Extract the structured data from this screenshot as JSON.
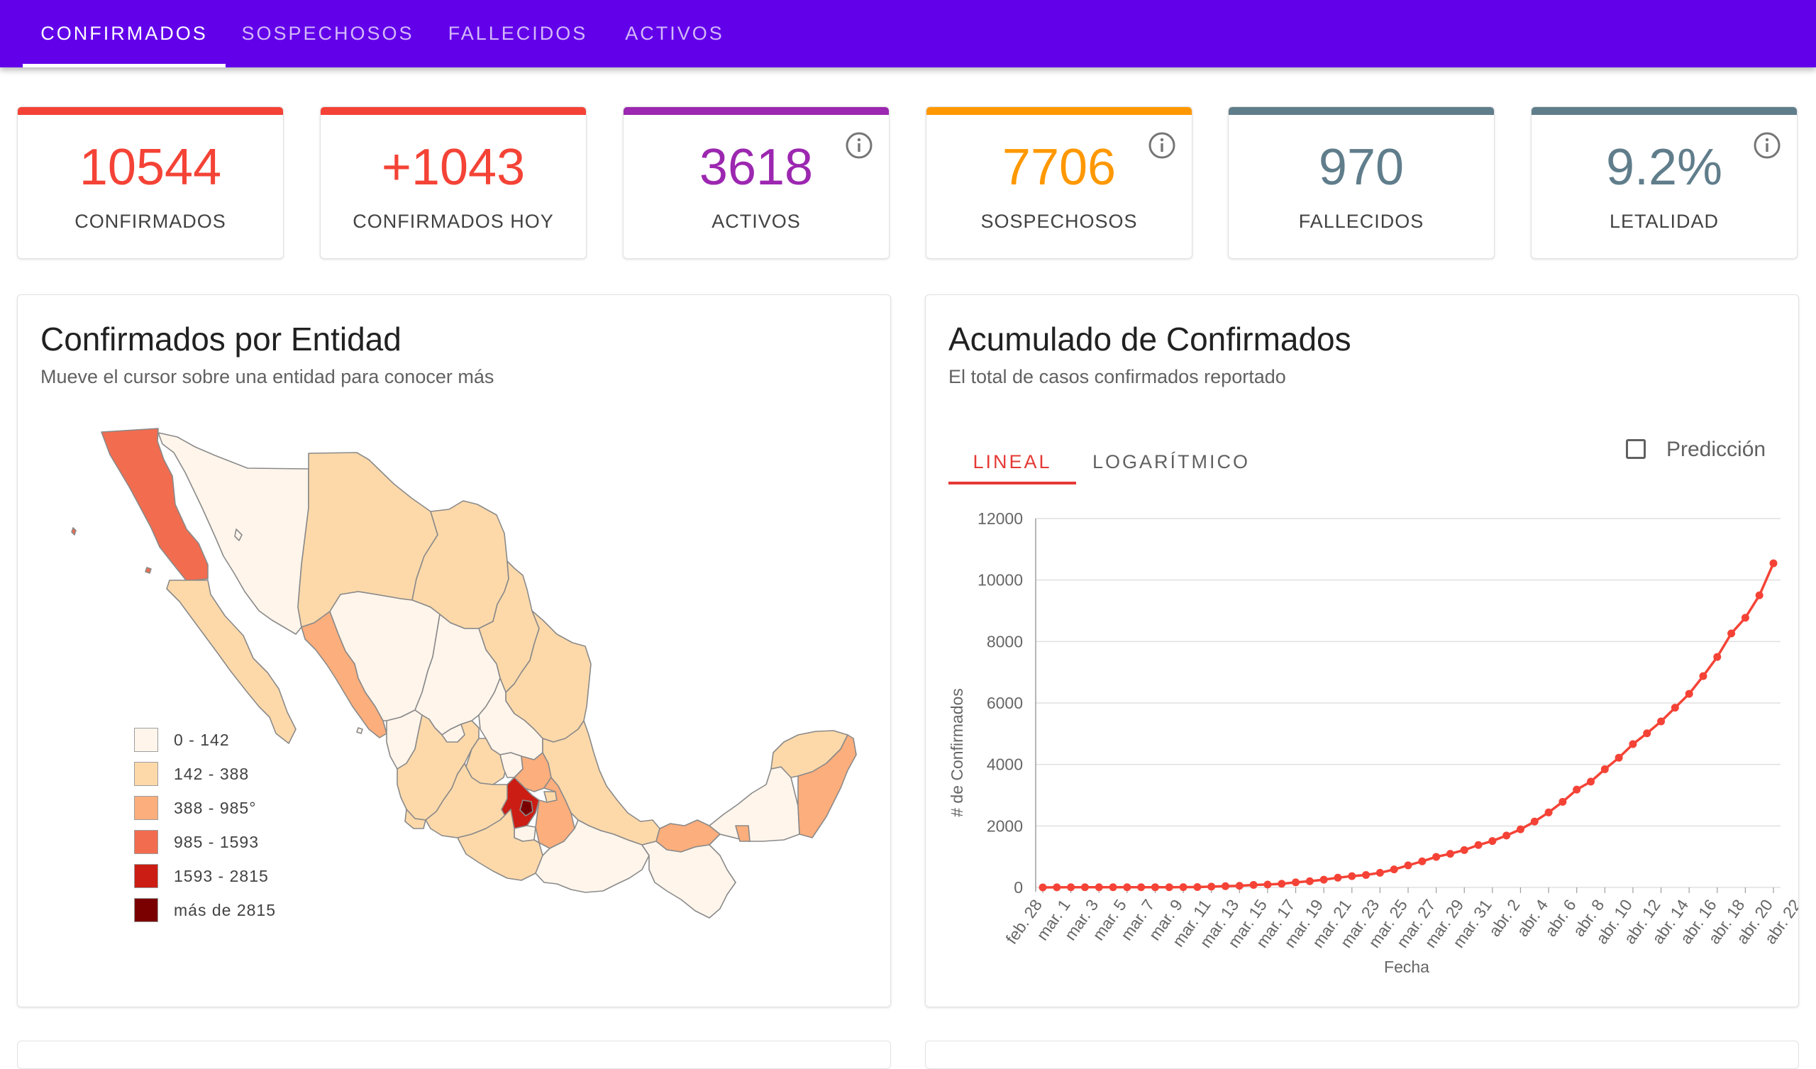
{
  "nav": {
    "tabs": [
      "CONFIRMADOS",
      "SOSPECHOSOS",
      "FALLECIDOS",
      "ACTIVOS"
    ],
    "active_index": 0
  },
  "stats": [
    {
      "value": "10544",
      "label": "CONFIRMADOS",
      "color": "#f44336",
      "bar_color": "#f44336",
      "info": false
    },
    {
      "value": "+1043",
      "label": "CONFIRMADOS HOY",
      "color": "#f44336",
      "bar_color": "#f44336",
      "info": false
    },
    {
      "value": "3618",
      "label": "ACTIVOS",
      "color": "#9c27b0",
      "bar_color": "#9c27b0",
      "info": true
    },
    {
      "value": "7706",
      "label": "SOSPECHOSOS",
      "color": "#ff9800",
      "bar_color": "#ff9800",
      "info": true
    },
    {
      "value": "970",
      "label": "FALLECIDOS",
      "color": "#607d8b",
      "bar_color": "#607d8b",
      "info": false
    },
    {
      "value": "9.2%",
      "label": "LETALIDAD",
      "color": "#607d8b",
      "bar_color": "#607d8b",
      "info": true
    }
  ],
  "map_card": {
    "title": "Confirmados por Entidad",
    "subtitle": "Mueve el cursor sobre una entidad para conocer más",
    "legend": [
      {
        "label": "0 - 142",
        "color": "#fff5eb"
      },
      {
        "label": "142 - 388",
        "color": "#fdd9aa"
      },
      {
        "label": "388 - 985°",
        "color": "#fcae7c"
      },
      {
        "label": "985 - 1593",
        "color": "#f26c4f"
      },
      {
        "label": "1593 - 2815",
        "color": "#cb1d13"
      },
      {
        "label": "más de 2815",
        "color": "#7a0000"
      }
    ]
  },
  "chart_card": {
    "title": "Acumulado de Confirmados",
    "subtitle": "El total de casos confirmados reportado",
    "tabs": [
      "LINEAL",
      "LOGARÍTMICO"
    ],
    "active_tab": 0,
    "prediction_label": "Predicción",
    "prediction_checked": false,
    "accent": "#e53935"
  },
  "chart_data": {
    "type": "line",
    "title": "Acumulado de Confirmados",
    "xlabel": "Fecha",
    "ylabel": "# de Confirmados",
    "ylim": [
      0,
      12000
    ],
    "yticks": [
      0,
      2000,
      4000,
      6000,
      8000,
      10000,
      12000
    ],
    "grid": true,
    "xtick_labels": [
      "feb. 28",
      "mar. 1",
      "mar. 3",
      "mar. 5",
      "mar. 7",
      "mar. 9",
      "mar. 11",
      "mar. 13",
      "mar. 15",
      "mar. 17",
      "mar. 19",
      "mar. 21",
      "mar. 23",
      "mar. 25",
      "mar. 27",
      "mar. 29",
      "mar. 31",
      "abr. 2",
      "abr. 4",
      "abr. 6",
      "abr. 8",
      "abr. 10",
      "abr. 12",
      "abr. 14",
      "abr. 16",
      "abr. 18",
      "abr. 20",
      "abr. 22"
    ],
    "series": [
      {
        "name": "Confirmados",
        "color": "#f44336",
        "values": [
          1,
          4,
          5,
          5,
          5,
          5,
          6,
          7,
          7,
          7,
          8,
          12,
          26,
          41,
          53,
          82,
          93,
          118,
          164,
          203,
          251,
          316,
          367,
          405,
          475,
          585,
          717,
          848,
          993,
          1094,
          1215,
          1378,
          1510,
          1688,
          1890,
          2143,
          2439,
          2785,
          3181,
          3441,
          3844,
          4219,
          4661,
          5014,
          5399,
          5847,
          6297,
          6875,
          7497,
          8261,
          8772,
          9501,
          10544
        ]
      }
    ]
  }
}
